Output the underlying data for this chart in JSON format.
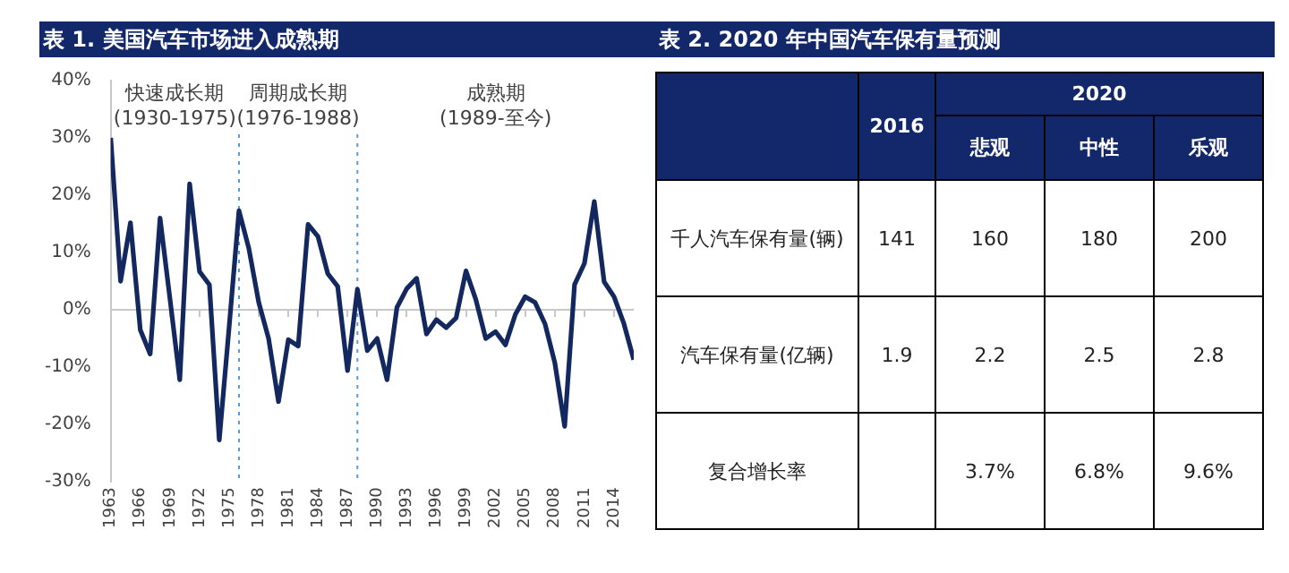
{
  "chart_data": [
    {
      "type": "line",
      "title": "表 1. 美国汽车市场进入成熟期",
      "x": [
        1963,
        1964,
        1965,
        1966,
        1967,
        1968,
        1969,
        1970,
        1971,
        1972,
        1973,
        1974,
        1975,
        1976,
        1977,
        1978,
        1979,
        1980,
        1981,
        1982,
        1983,
        1984,
        1985,
        1986,
        1987,
        1988,
        1989,
        1990,
        1991,
        1992,
        1993,
        1994,
        1995,
        1996,
        1997,
        1998,
        1999,
        2000,
        2001,
        2002,
        2003,
        2004,
        2005,
        2006,
        2007,
        2008,
        2009,
        2010,
        2011,
        2012,
        2013,
        2014,
        2015,
        2016
      ],
      "series": [
        {
          "color": "#13285e",
          "values": [
            30,
            5,
            15.2,
            -3.5,
            -7.7,
            16,
            2,
            -12.2,
            22,
            6.7,
            4.4,
            -22.7,
            -3,
            17.3,
            10.7,
            1.3,
            -5,
            -16,
            -5.2,
            -6.3,
            14.9,
            12.8,
            6.3,
            4.1,
            -10.6,
            3.6,
            -7.1,
            -5,
            -12.2,
            0.4,
            3.7,
            5.5,
            -4.2,
            -1.7,
            -3.1,
            -1.4,
            6.8,
            1.8,
            -5,
            -3.8,
            -6.1,
            -0.8,
            2.3,
            1.3,
            -2.4,
            -9.2,
            -20.3,
            4.4,
            8.1,
            18.9,
            4.9,
            2.3,
            -2.4,
            -8.7
          ]
        }
      ],
      "xlim": [
        1963,
        2016
      ],
      "xticks": [
        1963,
        1966,
        1969,
        1972,
        1975,
        1978,
        1981,
        1984,
        1987,
        1990,
        1993,
        1996,
        1999,
        2002,
        2005,
        2008,
        2011,
        2014
      ],
      "ylim": [
        -30,
        40
      ],
      "yticks": [
        {
          "value": -30,
          "label": "-30%"
        },
        {
          "value": -20,
          "label": "-20%"
        },
        {
          "value": -10,
          "label": "-10%"
        },
        {
          "value": 0,
          "label": "0%"
        },
        {
          "value": 10,
          "label": "10%"
        },
        {
          "value": 20,
          "label": "20%"
        },
        {
          "value": 30,
          "label": "30%"
        },
        {
          "value": 40,
          "label": "40%"
        }
      ],
      "ref_lines": [
        {
          "axis": "y",
          "value": 0,
          "color": "#c8c8c8",
          "line_style": "solid"
        },
        {
          "axis": "x",
          "value": 1976,
          "color": "#5b9bd5",
          "line_style": "dotted"
        },
        {
          "axis": "x",
          "value": 1988,
          "color": "#5b9bd5",
          "line_style": "dotted"
        }
      ],
      "annotations": [
        "快速成长期\n(1930-1975)",
        "周期成长期\n(1976-1988)",
        "成熟期\n(1989-至今)"
      ],
      "grid": false,
      "legend": false,
      "marker": "none",
      "line_style": "solid"
    },
    {
      "type": "other",
      "title": "表 2. 2020 年中国汽车保有量预测",
      "annotations": [
        "2016",
        "2020",
        "悲观",
        "中性",
        "乐观",
        "千人汽车保有量(辆)",
        "141",
        "160",
        "180",
        "200",
        "汽车保有量(亿辆)",
        "1.9",
        "2.2",
        "2.5",
        "2.8",
        "复合增长率",
        "3.7%",
        "6.8%",
        "9.6%"
      ]
    }
  ]
}
